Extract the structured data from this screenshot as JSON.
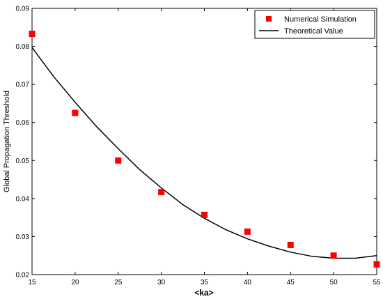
{
  "chart_data": {
    "type": "scatter",
    "xlabel": "<ka>",
    "ylabel": "Global Propagation Threshold",
    "xlim": [
      15,
      55
    ],
    "ylim": [
      0.02,
      0.09
    ],
    "xticks": [
      15,
      20,
      25,
      30,
      35,
      40,
      45,
      50,
      55
    ],
    "yticks": [
      0.02,
      0.03,
      0.04,
      0.05,
      0.06,
      0.07,
      0.08,
      0.09
    ],
    "grid": false,
    "legend_position": "top-right",
    "series": [
      {
        "name": "Numerical Simulation",
        "kind": "scatter",
        "marker": "square",
        "color": "#ff0000",
        "x": [
          15,
          20,
          25,
          30,
          35,
          40,
          45,
          50,
          55
        ],
        "y": [
          0.0833,
          0.0625,
          0.05,
          0.0417,
          0.0357,
          0.0313,
          0.0278,
          0.025,
          0.0227
        ]
      },
      {
        "name": "Theoretical Value",
        "kind": "line",
        "color": "#000000",
        "x": [
          15,
          17.5,
          20,
          22.5,
          25,
          27.5,
          30,
          32.5,
          35,
          37.5,
          40,
          42.5,
          45,
          47.5,
          50,
          52.5,
          55
        ],
        "y": [
          0.0797,
          0.0721,
          0.0653,
          0.0589,
          0.0531,
          0.0476,
          0.0428,
          0.0384,
          0.0348,
          0.0318,
          0.0294,
          0.0275,
          0.0259,
          0.0248,
          0.0243,
          0.0243,
          0.025
        ]
      }
    ]
  }
}
